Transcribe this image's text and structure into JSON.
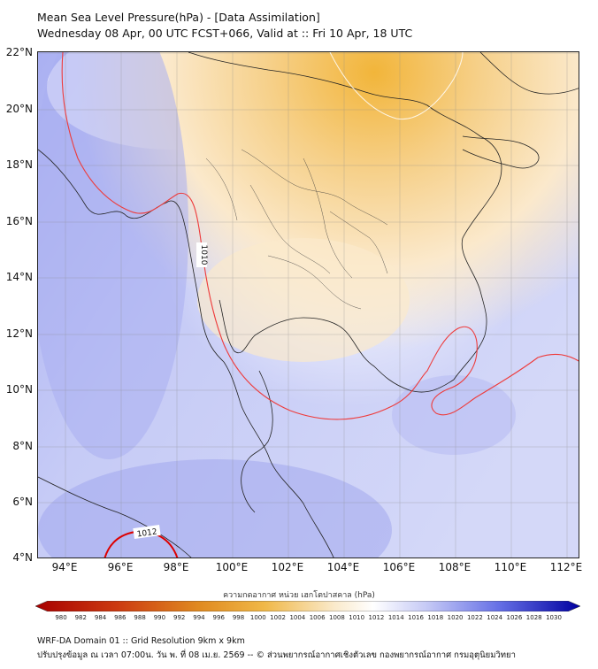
{
  "title": {
    "line1": "Mean Sea Level Pressure(hPa) - [Data Assimilation]",
    "line2": "Wednesday 08 Apr, 00 UTC FCST+066, Valid at :: Fri 10 Apr, 18 UTC"
  },
  "axes": {
    "lat_ticks": [
      "22°N",
      "20°N",
      "18°N",
      "16°N",
      "14°N",
      "12°N",
      "10°N",
      "8°N",
      "6°N",
      "4°N"
    ],
    "lon_ticks": [
      "94°E",
      "96°E",
      "98°E",
      "100°E",
      "102°E",
      "104°E",
      "106°E",
      "108°E",
      "110°E",
      "112°E"
    ],
    "lat_range": [
      4,
      22
    ],
    "lon_range": [
      93,
      112.5
    ]
  },
  "contour_labels": {
    "c1010": "1010",
    "c1012": "1012"
  },
  "colorbar": {
    "title": "ความกดอากาศ หน่วย เฮกโตปาสคาล (hPa)",
    "ticks": [
      "980",
      "982",
      "984",
      "986",
      "988",
      "990",
      "992",
      "994",
      "996",
      "998",
      "1000",
      "1002",
      "1004",
      "1006",
      "1008",
      "1010",
      "1012",
      "1014",
      "1016",
      "1018",
      "1020",
      "1022",
      "1024",
      "1026",
      "1028",
      "1030"
    ],
    "colors": {
      "low": "#a80000",
      "mid_low": "#e8a020",
      "neutral": "#ffffff",
      "mid_high": "#9aa0f0",
      "high": "#0000a0"
    }
  },
  "footer": {
    "line1": "WRF-DA Domain 01 :: Grid Resolution 9km x 9km",
    "line2": "ปรับปรุงข้อมูล ณ เวลา 07:00น. วัน พ. ที่ 08 เม.ย. 2569 -- © ส่วนพยากรณ์อากาศเชิงตัวเลข กองพยากรณ์อากาศ กรมอุตุนิยมวิทยา"
  },
  "styles": {
    "contour_color": "#ee3b3b",
    "contour_bold_color": "#dd0000",
    "coast_color": "#222222"
  }
}
